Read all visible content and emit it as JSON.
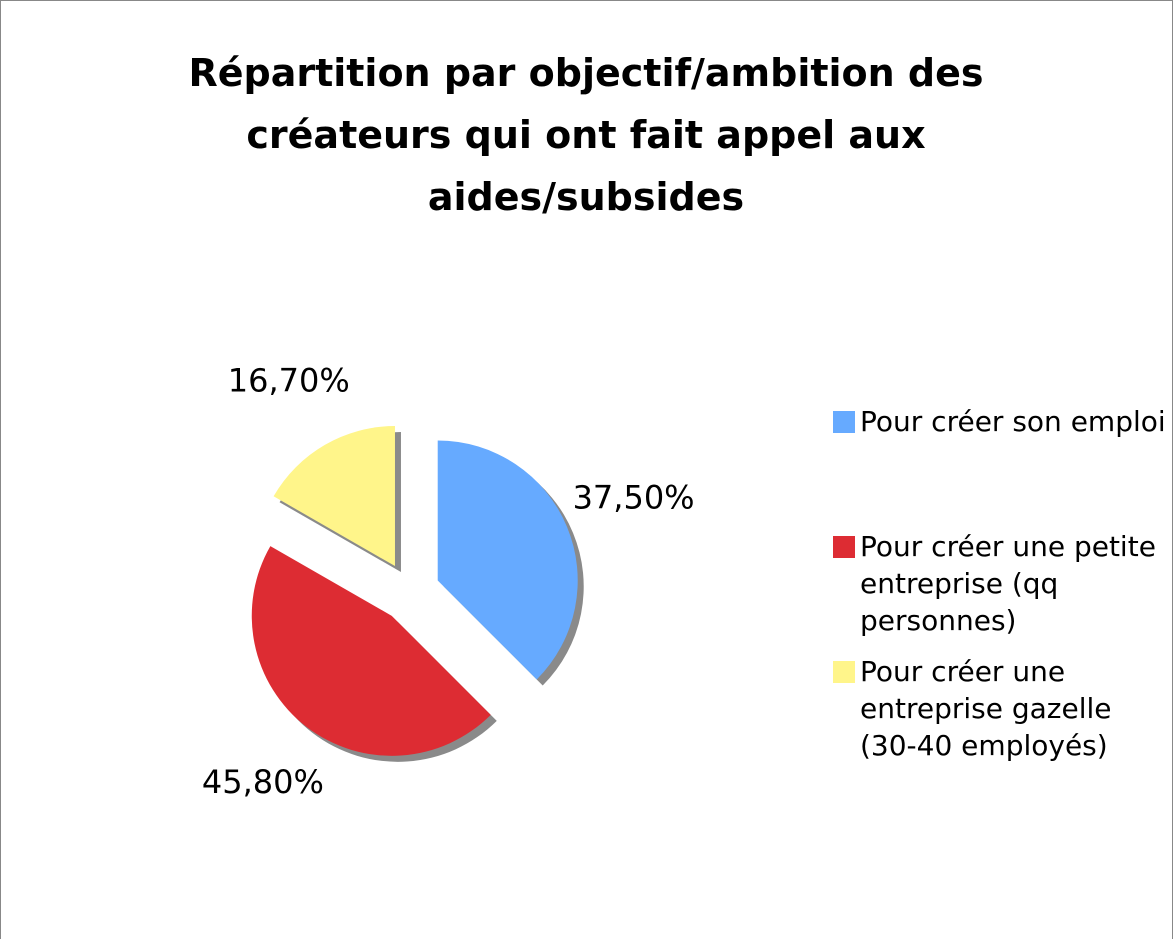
{
  "chart_data": {
    "type": "pie",
    "title": "Répartition par objectif/ambition des créateurs qui ont fait appel aux aides/subsides",
    "categories": [
      "Pour créer son emploi",
      "Pour créer une petite entreprise (qq personnes)",
      "Pour créer une entreprise gazelle (30-40 employés)"
    ],
    "values": [
      37.5,
      45.8,
      16.7
    ],
    "value_labels": [
      "37,50%",
      "45,80%",
      "16,70%"
    ],
    "colors": [
      "#66aaff",
      "#dd2c33",
      "#fff58a"
    ],
    "legend": "right"
  }
}
